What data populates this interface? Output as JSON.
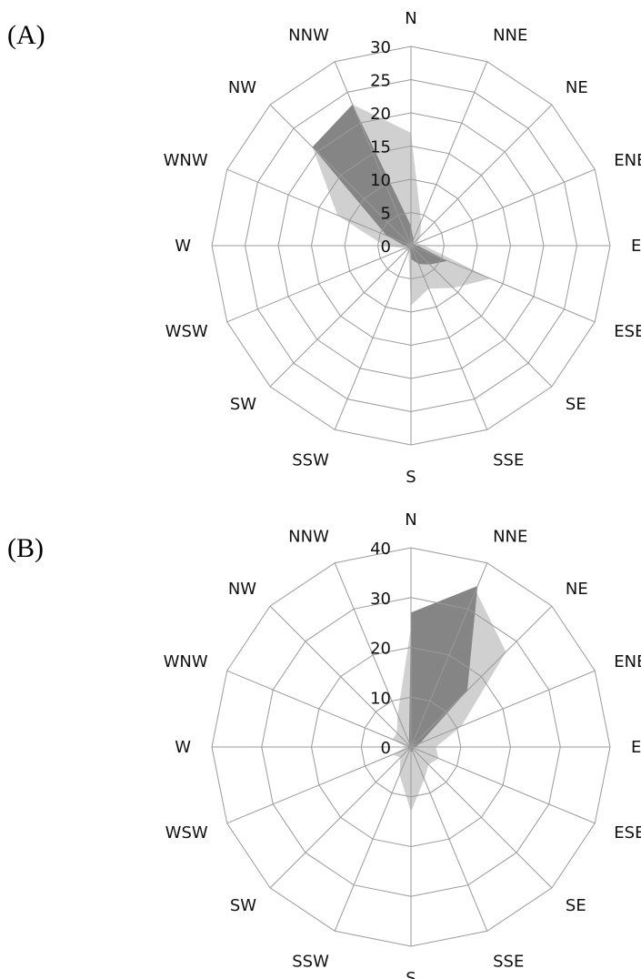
{
  "colors": {
    "series_light": "#d0d0d0",
    "series_dark": "#858585",
    "grid": "#9a9a9a",
    "text": "#111111"
  },
  "chart_data": [
    {
      "type": "radar",
      "panel_label": "(A)",
      "directions": [
        "N",
        "NNE",
        "NE",
        "ENE",
        "E",
        "ESE",
        "SE",
        "SSE",
        "S",
        "SSW",
        "SW",
        "WSW",
        "W",
        "WNW",
        "NW",
        "NNW"
      ],
      "rlim": [
        0,
        30
      ],
      "ticks": [
        "0",
        "5",
        "10",
        "15",
        "20",
        "25",
        "30"
      ],
      "tick_values": [
        0,
        5,
        10,
        15,
        20,
        25,
        30
      ],
      "grid": true,
      "series": [
        {
          "values": [
            17,
            4,
            2,
            1,
            2,
            13,
            9,
            7,
            9,
            1,
            1,
            1,
            4,
            12,
            21,
            23
          ]
        },
        {
          "values": [
            3,
            1,
            0.5,
            0.5,
            1,
            6,
            4,
            3,
            2,
            0.5,
            0.5,
            0.5,
            1,
            4,
            21,
            23
          ]
        }
      ]
    },
    {
      "type": "radar",
      "panel_label": "(B)",
      "directions": [
        "N",
        "NNE",
        "NE",
        "ENE",
        "E",
        "ESE",
        "SE",
        "SSE",
        "S",
        "SSW",
        "SW",
        "WSW",
        "W",
        "WNW",
        "NW",
        "NNW"
      ],
      "rlim": [
        0,
        40
      ],
      "ticks": [
        "0",
        "10",
        "20",
        "30",
        "40"
      ],
      "tick_values": [
        0,
        10,
        20,
        30,
        40
      ],
      "grid": true,
      "series": [
        {
          "values": [
            24,
            34,
            27,
            11,
            5,
            6,
            5,
            7,
            13,
            6,
            3,
            4,
            1,
            4,
            4,
            7
          ]
        },
        {
          "values": [
            27,
            35,
            16,
            2,
            1,
            0.5,
            0.5,
            1,
            1,
            0.5,
            0.5,
            0.5,
            0.5,
            0.5,
            0.5,
            1
          ]
        }
      ]
    }
  ]
}
